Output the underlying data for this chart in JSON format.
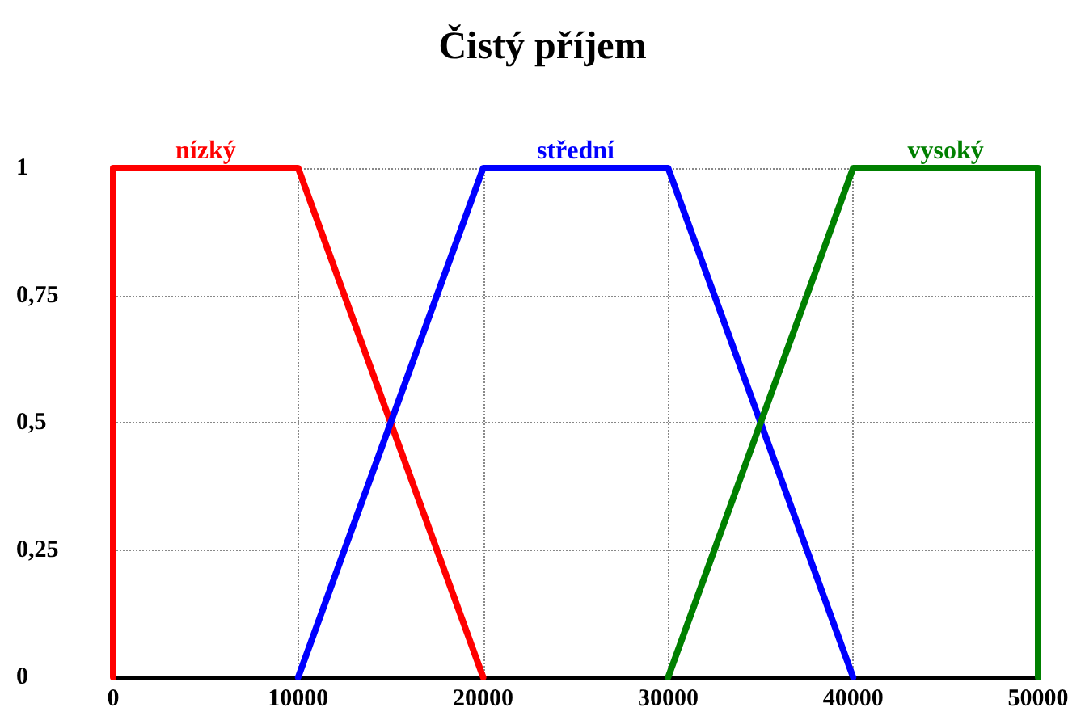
{
  "chart_data": {
    "type": "line",
    "title": "Čistý příjem",
    "legend": false,
    "grid": true,
    "marker": "none",
    "line_style": "solid",
    "xlim": [
      0,
      50000
    ],
    "xticks": [
      0,
      10000,
      20000,
      30000,
      40000,
      50000
    ],
    "ylim": [
      0,
      1
    ],
    "yticks": [
      {
        "value": 0,
        "label": "0"
      },
      {
        "value": 0.25,
        "label": "0,25"
      },
      {
        "value": 0.5,
        "label": "0,5"
      },
      {
        "value": 0.75,
        "label": "0,75"
      },
      {
        "value": 1,
        "label": "1"
      }
    ],
    "series": [
      {
        "name": "nízký",
        "color": "#ff0000",
        "x": [
          0,
          0,
          10000,
          20000
        ],
        "values": [
          0,
          1,
          1,
          0
        ]
      },
      {
        "name": "střední",
        "color": "#0000ff",
        "x": [
          10000,
          20000,
          30000,
          40000
        ],
        "values": [
          0,
          1,
          1,
          0
        ]
      },
      {
        "name": "vysoký",
        "color": "#008000",
        "x": [
          30000,
          40000,
          50000,
          50000
        ],
        "values": [
          0,
          1,
          1,
          0
        ]
      }
    ]
  }
}
